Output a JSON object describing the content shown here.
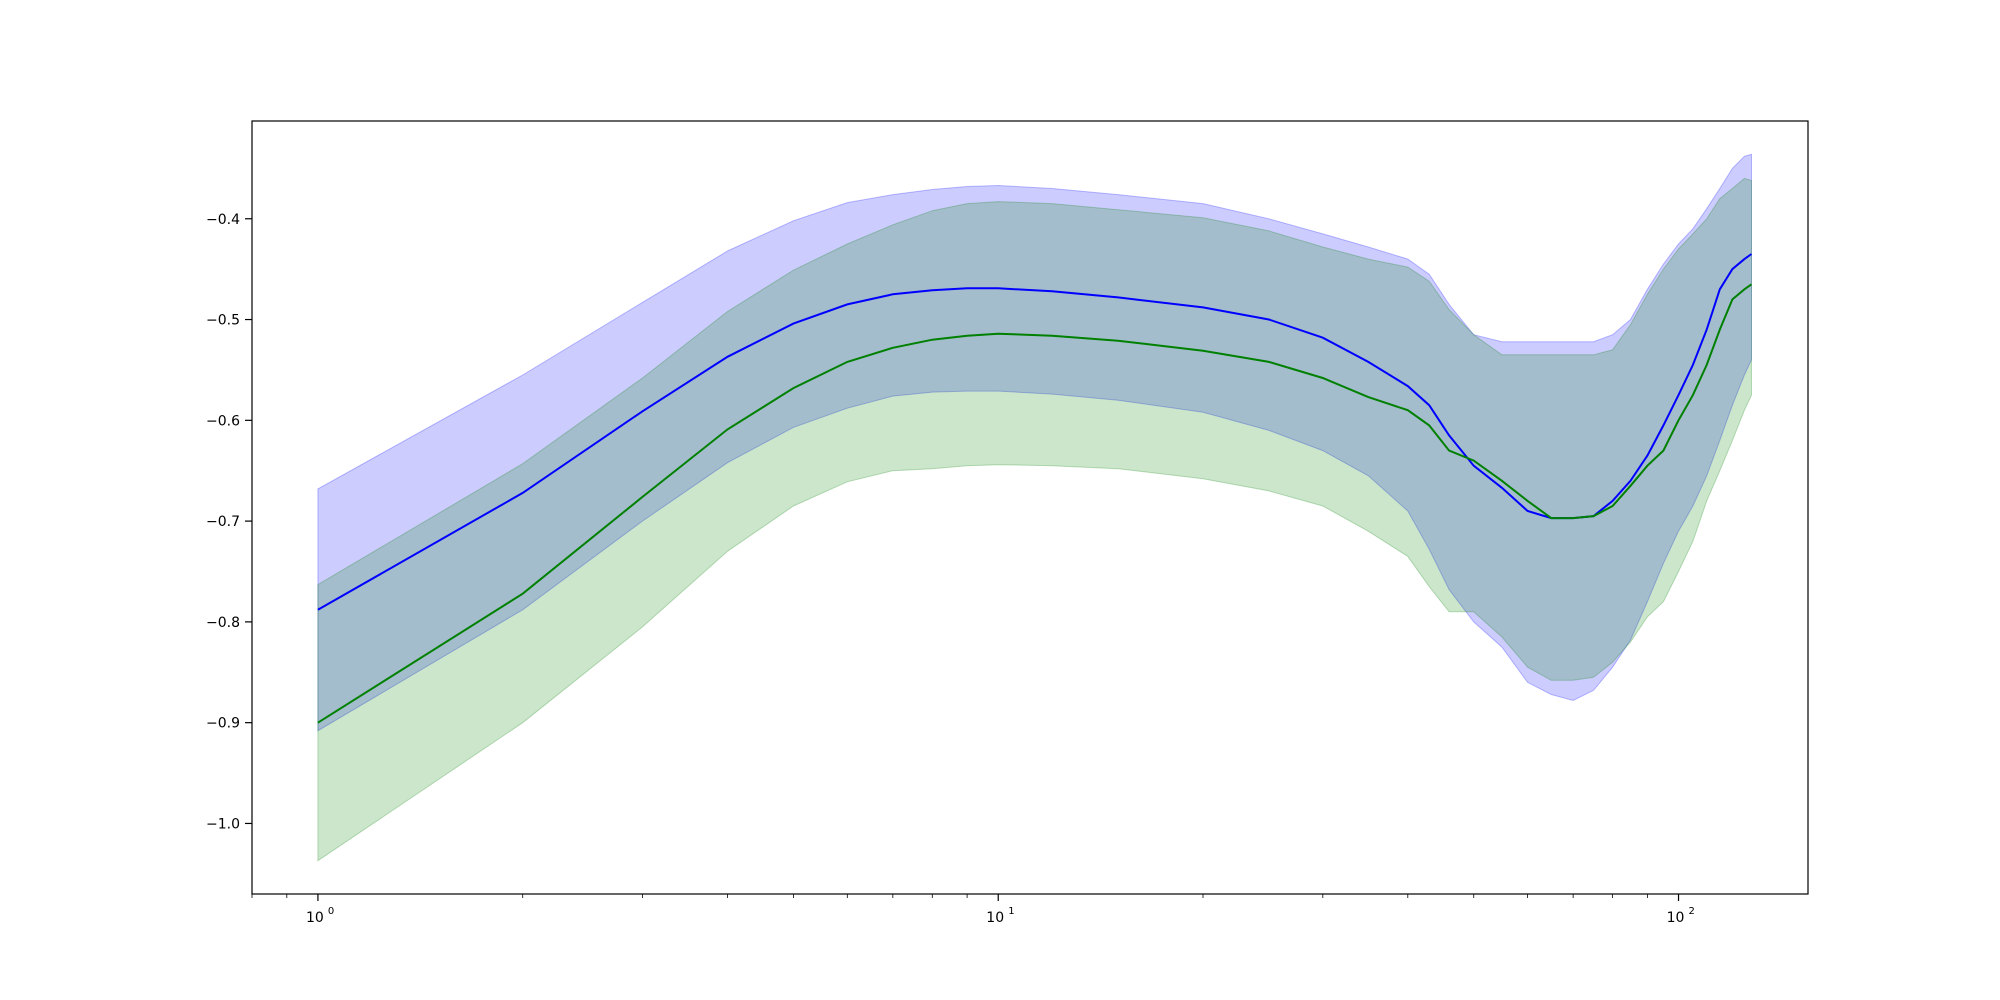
{
  "chart_data": {
    "type": "line",
    "title": "",
    "xlabel": "",
    "ylabel": "",
    "x_scale": "log",
    "xlim": [
      0.8,
      155
    ],
    "ylim": [
      -1.07,
      -0.303
    ],
    "grid": false,
    "legend": "none",
    "x_tick_labels": [
      {
        "base": "10",
        "exp": "0",
        "value": 1
      },
      {
        "base": "10",
        "exp": "1",
        "value": 10
      },
      {
        "base": "10",
        "exp": "2",
        "value": 100
      }
    ],
    "y_ticks": [
      -1.0,
      -0.9,
      -0.8,
      -0.7,
      -0.6,
      -0.5,
      -0.4
    ],
    "y_tick_labels": [
      "−1.0",
      "−0.9",
      "−0.8",
      "−0.7",
      "−0.6",
      "−0.5",
      "−0.4"
    ],
    "x": [
      1,
      2,
      3,
      4,
      5,
      6,
      7,
      8,
      9,
      10,
      12,
      15,
      20,
      25,
      30,
      35,
      40,
      43,
      46,
      50,
      55,
      60,
      65,
      70,
      75,
      80,
      85,
      90,
      95,
      100,
      105,
      110,
      115,
      120,
      125,
      128
    ],
    "series": [
      {
        "color": "#0000ff",
        "band_color": "#0000ff",
        "band_opacity": 0.2,
        "mean": [
          -0.788,
          -0.672,
          -0.591,
          -0.537,
          -0.504,
          -0.485,
          -0.475,
          -0.471,
          -0.469,
          -0.469,
          -0.472,
          -0.478,
          -0.488,
          -0.5,
          -0.518,
          -0.542,
          -0.566,
          -0.585,
          -0.615,
          -0.645,
          -0.667,
          -0.69,
          -0.697,
          -0.697,
          -0.695,
          -0.68,
          -0.66,
          -0.635,
          -0.605,
          -0.575,
          -0.545,
          -0.51,
          -0.47,
          -0.45,
          -0.44,
          -0.435
        ],
        "upper": [
          -0.668,
          -0.555,
          -0.483,
          -0.432,
          -0.402,
          -0.384,
          -0.376,
          -0.371,
          -0.368,
          -0.367,
          -0.37,
          -0.376,
          -0.385,
          -0.4,
          -0.415,
          -0.428,
          -0.44,
          -0.455,
          -0.485,
          -0.515,
          -0.522,
          -0.522,
          -0.522,
          -0.522,
          -0.522,
          -0.515,
          -0.5,
          -0.47,
          -0.445,
          -0.425,
          -0.41,
          -0.39,
          -0.37,
          -0.35,
          -0.338,
          -0.336
        ],
        "lower": [
          -0.908,
          -0.788,
          -0.7,
          -0.642,
          -0.607,
          -0.588,
          -0.576,
          -0.572,
          -0.571,
          -0.571,
          -0.574,
          -0.58,
          -0.592,
          -0.61,
          -0.63,
          -0.655,
          -0.69,
          -0.728,
          -0.768,
          -0.8,
          -0.825,
          -0.86,
          -0.872,
          -0.878,
          -0.868,
          -0.845,
          -0.818,
          -0.78,
          -0.742,
          -0.71,
          -0.685,
          -0.655,
          -0.62,
          -0.585,
          -0.555,
          -0.54
        ]
      },
      {
        "color": "#008000",
        "band_color": "#008000",
        "band_opacity": 0.2,
        "mean": [
          -0.9,
          -0.772,
          -0.676,
          -0.609,
          -0.568,
          -0.542,
          -0.528,
          -0.52,
          -0.516,
          -0.514,
          -0.516,
          -0.521,
          -0.531,
          -0.542,
          -0.558,
          -0.577,
          -0.59,
          -0.605,
          -0.63,
          -0.64,
          -0.66,
          -0.68,
          -0.697,
          -0.697,
          -0.695,
          -0.685,
          -0.665,
          -0.645,
          -0.63,
          -0.6,
          -0.575,
          -0.545,
          -0.51,
          -0.48,
          -0.47,
          -0.465
        ],
        "upper": [
          -0.763,
          -0.643,
          -0.558,
          -0.492,
          -0.451,
          -0.425,
          -0.406,
          -0.392,
          -0.385,
          -0.383,
          -0.385,
          -0.391,
          -0.399,
          -0.412,
          -0.428,
          -0.44,
          -0.448,
          -0.462,
          -0.49,
          -0.515,
          -0.535,
          -0.535,
          -0.535,
          -0.535,
          -0.535,
          -0.53,
          -0.505,
          -0.475,
          -0.45,
          -0.43,
          -0.415,
          -0.4,
          -0.38,
          -0.37,
          -0.36,
          -0.362
        ],
        "lower": [
          -1.037,
          -0.9,
          -0.805,
          -0.73,
          -0.685,
          -0.661,
          -0.65,
          -0.648,
          -0.645,
          -0.644,
          -0.645,
          -0.648,
          -0.658,
          -0.67,
          -0.685,
          -0.71,
          -0.735,
          -0.765,
          -0.79,
          -0.79,
          -0.815,
          -0.845,
          -0.858,
          -0.858,
          -0.855,
          -0.84,
          -0.82,
          -0.795,
          -0.78,
          -0.75,
          -0.72,
          -0.68,
          -0.65,
          -0.62,
          -0.59,
          -0.575
        ]
      }
    ]
  }
}
